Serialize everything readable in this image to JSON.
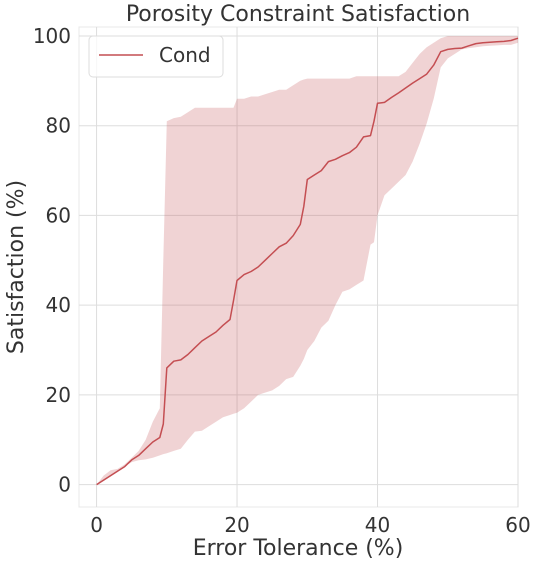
{
  "chart_data": {
    "type": "line",
    "title": "Porosity Constraint Satisfaction",
    "xlabel": "Error Tolerance (%)",
    "ylabel": "Satisfaction (%)",
    "xlim": [
      -2.5,
      60
    ],
    "ylim": [
      -5,
      102
    ],
    "xticks": [
      0,
      20,
      40,
      60
    ],
    "yticks": [
      0,
      20,
      40,
      60,
      80,
      100
    ],
    "grid": true,
    "legend_position": "upper left",
    "series": [
      {
        "name": "Cond",
        "color": "#c44e52",
        "x": [
          0,
          1,
          2,
          3,
          4,
          5,
          6,
          7,
          8,
          9,
          9.5,
          10,
          11,
          12,
          13,
          14,
          15,
          16,
          17,
          18,
          19,
          19.5,
          20,
          21,
          22,
          23,
          24,
          25,
          26,
          27,
          28,
          29,
          29.5,
          30,
          31,
          32,
          33,
          34,
          35,
          36,
          37,
          38,
          39,
          39.5,
          40,
          41,
          42,
          43,
          44,
          45,
          46,
          47,
          48,
          49,
          50,
          51,
          52,
          53,
          54,
          55,
          56,
          57,
          58,
          59,
          60
        ],
        "y": [
          0,
          1,
          2,
          3,
          4,
          5.5,
          6.5,
          8,
          9.5,
          10.5,
          13.5,
          26,
          27.5,
          27.8,
          29,
          30.5,
          32,
          33,
          34,
          35.5,
          36.8,
          41,
          45.5,
          46.8,
          47.5,
          48.5,
          50,
          51.5,
          53,
          53.8,
          55.5,
          58,
          62,
          68,
          69,
          70,
          72,
          72.5,
          73.3,
          74,
          75.2,
          77.5,
          77.8,
          81,
          85,
          85.2,
          86.3,
          87.3,
          88.4,
          89.5,
          90.5,
          91.5,
          93.5,
          96.5,
          97,
          97.2,
          97.3,
          97.8,
          98.3,
          98.5,
          98.6,
          98.7,
          98.8,
          99,
          99.5
        ],
        "lower": [
          0,
          0.8,
          1.8,
          2.8,
          4,
          5,
          5.4,
          5.6,
          6,
          6.5,
          6.8,
          7,
          7.5,
          8,
          10,
          11.8,
          12,
          13,
          14,
          15,
          15.5,
          15.8,
          16,
          17,
          18.5,
          20,
          20.5,
          21,
          22,
          23.5,
          24,
          26.5,
          28,
          30,
          32,
          35,
          36.5,
          40,
          43,
          43.5,
          44.5,
          45.5,
          53.5,
          54,
          60,
          64.5,
          66,
          67.5,
          69,
          72,
          76,
          80.5,
          86,
          93,
          95,
          96,
          97,
          97.3,
          97.5,
          97.7,
          97.8,
          97.9,
          98,
          98,
          98.5
        ],
        "upper": [
          0,
          2,
          3.2,
          3.5,
          4.5,
          6,
          7.5,
          10,
          14,
          17,
          50,
          81,
          81.7,
          82,
          83,
          84,
          84,
          84,
          84,
          84,
          84,
          84,
          86,
          86,
          86.5,
          86.5,
          87,
          87.5,
          88,
          88,
          89,
          90,
          90.3,
          90.5,
          90.5,
          90.5,
          90.5,
          90.5,
          90.5,
          90.5,
          91,
          91,
          91,
          91,
          91,
          91,
          91,
          91,
          92,
          94,
          96,
          97.5,
          98.5,
          99.5,
          100,
          100,
          100,
          100,
          100,
          100,
          100,
          100,
          100,
          100,
          100
        ]
      }
    ]
  }
}
